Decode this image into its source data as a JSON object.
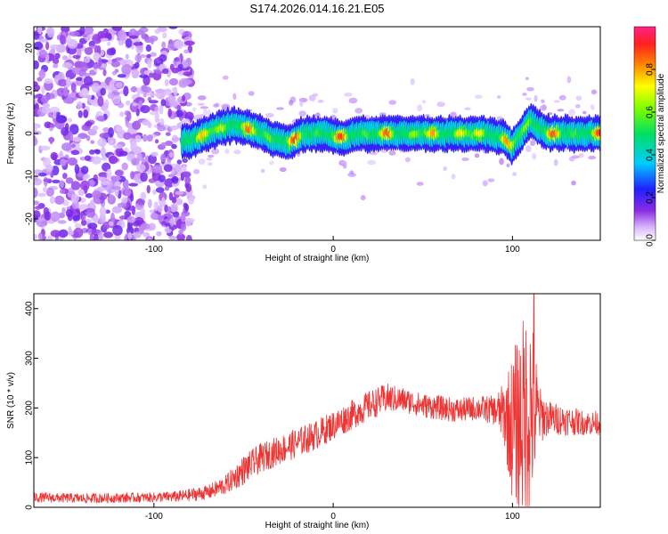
{
  "title": "S174.2026.014.16.21.E05",
  "chart_data": [
    {
      "type": "heatmap",
      "xlabel": "Height of straight line (km)",
      "ylabel": "Frequency (Hz)",
      "xlim": [
        -167,
        149
      ],
      "ylim": [
        -25,
        25
      ],
      "x_ticks": [
        -100,
        0,
        100
      ],
      "y_ticks": [
        -20,
        -10,
        0,
        10,
        20
      ],
      "colorbar": {
        "label": "Normalized spectral amplitude",
        "range": [
          0,
          1
        ],
        "ticks": [
          0.0,
          0.2,
          0.4,
          0.6,
          0.8
        ],
        "colormap": "rainbow (white-purple-blue-cyan-green-yellow-orange-red-pink)"
      },
      "ridge": {
        "x": [
          -84,
          -75,
          -65,
          -55,
          -45,
          -35,
          -25,
          -15,
          -5,
          5,
          15,
          30,
          50,
          70,
          85,
          95,
          100,
          105,
          110,
          120,
          135,
          148
        ],
        "frequency": [
          -2,
          -1,
          1,
          2,
          1,
          -1,
          -2,
          0,
          0,
          -1,
          0,
          0,
          0,
          0,
          0,
          -1,
          -3,
          0,
          3,
          0,
          0,
          0
        ]
      },
      "noise_region": [
        -167,
        -83
      ],
      "grid": false
    },
    {
      "type": "line",
      "xlabel": "Height of straight line (km)",
      "ylabel": "SNR (10 * v/v)",
      "xlim": [
        -167,
        149
      ],
      "ylim": [
        0,
        430
      ],
      "x_ticks": [
        -100,
        0,
        100
      ],
      "y_ticks": [
        0,
        100,
        200,
        300,
        400
      ],
      "color": "#ee3333",
      "envelope": {
        "x": [
          -167,
          -140,
          -100,
          -85,
          -70,
          -60,
          -50,
          -40,
          -30,
          -20,
          -10,
          0,
          10,
          20,
          30,
          40,
          50,
          60,
          70,
          80,
          90,
          95,
          100,
          105,
          110,
          115,
          120,
          130,
          140,
          149
        ],
        "mean": [
          20,
          18,
          20,
          22,
          30,
          45,
          75,
          100,
          115,
          130,
          145,
          165,
          185,
          205,
          220,
          215,
          205,
          200,
          195,
          200,
          195,
          190,
          160,
          175,
          200,
          185,
          180,
          175,
          170,
          170
        ],
        "spread": [
          10,
          10,
          10,
          12,
          15,
          20,
          30,
          30,
          30,
          30,
          30,
          30,
          30,
          30,
          30,
          25,
          25,
          25,
          25,
          25,
          30,
          60,
          150,
          200,
          220,
          60,
          35,
          30,
          25,
          25
        ]
      },
      "peak": {
        "x": 112,
        "value": 430
      },
      "grid": false
    }
  ]
}
